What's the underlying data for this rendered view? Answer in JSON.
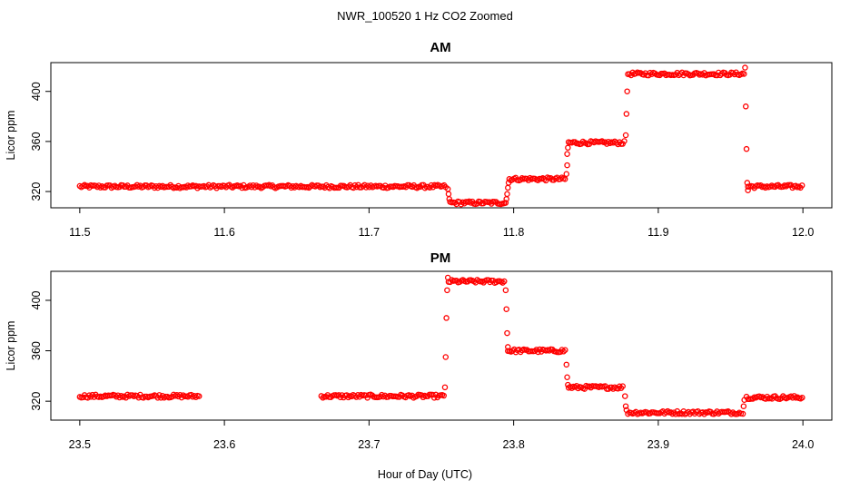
{
  "figure": {
    "title": "NWR_100520  1 Hz CO2 Zoomed",
    "xlabel": "Hour of Day (UTC)"
  },
  "chart_data": [
    {
      "type": "scatter",
      "title": "AM",
      "ylabel": "Licor ppm",
      "xlim": [
        11.48,
        12.02
      ],
      "ylim": [
        307,
        423
      ],
      "xticks": [
        11.5,
        11.6,
        11.7,
        11.8,
        11.9,
        12.0
      ],
      "xtick_labels": [
        "11.5",
        "11.6",
        "11.7",
        "11.8",
        "11.9",
        "12.0"
      ],
      "yticks": [
        320,
        360,
        400
      ],
      "ytick_labels": [
        "320",
        "360",
        "400"
      ],
      "marker_color": "#ff0000",
      "plateaus": [
        {
          "start": 11.5,
          "end": 11.754,
          "value": 324
        },
        {
          "start": 11.756,
          "end": 11.795,
          "value": 311
        },
        {
          "start": 11.797,
          "end": 11.836,
          "value": 330
        },
        {
          "start": 11.838,
          "end": 11.877,
          "value": 359
        },
        {
          "start": 11.879,
          "end": 11.96,
          "value": 414
        },
        {
          "start": 11.962,
          "end": 12.0,
          "value": 324
        }
      ],
      "transitions": [
        {
          "x": 11.7545,
          "y": 322
        },
        {
          "x": 11.755,
          "y": 318
        },
        {
          "x": 11.7555,
          "y": 314
        },
        {
          "x": 11.795,
          "y": 314
        },
        {
          "x": 11.7955,
          "y": 318
        },
        {
          "x": 11.796,
          "y": 323
        },
        {
          "x": 11.7965,
          "y": 327
        },
        {
          "x": 11.8365,
          "y": 334
        },
        {
          "x": 11.837,
          "y": 341
        },
        {
          "x": 11.837,
          "y": 350
        },
        {
          "x": 11.8375,
          "y": 355
        },
        {
          "x": 11.8775,
          "y": 365
        },
        {
          "x": 11.878,
          "y": 382
        },
        {
          "x": 11.8785,
          "y": 400
        },
        {
          "x": 11.96,
          "y": 419
        },
        {
          "x": 11.9605,
          "y": 388
        },
        {
          "x": 11.961,
          "y": 354
        },
        {
          "x": 11.9615,
          "y": 327
        },
        {
          "x": 11.962,
          "y": 321
        }
      ]
    },
    {
      "type": "scatter",
      "title": "PM",
      "ylabel": "Licor ppm",
      "xlim": [
        23.48,
        24.02
      ],
      "ylim": [
        305,
        423
      ],
      "xticks": [
        23.5,
        23.6,
        23.7,
        23.8,
        23.9,
        24.0
      ],
      "xtick_labels": [
        "23.5",
        "23.6",
        "23.7",
        "23.8",
        "23.9",
        "24.0"
      ],
      "yticks": [
        320,
        360,
        400
      ],
      "ytick_labels": [
        "320",
        "360",
        "400"
      ],
      "marker_color": "#ff0000",
      "plateaus": [
        {
          "start": 23.5,
          "end": 23.583,
          "value": 324
        },
        {
          "start": 23.667,
          "end": 23.752,
          "value": 324
        },
        {
          "start": 23.755,
          "end": 23.794,
          "value": 415
        },
        {
          "start": 23.796,
          "end": 23.836,
          "value": 360
        },
        {
          "start": 23.838,
          "end": 23.876,
          "value": 331
        },
        {
          "start": 23.879,
          "end": 23.958,
          "value": 311
        },
        {
          "start": 23.961,
          "end": 24.0,
          "value": 323
        }
      ],
      "transitions": [
        {
          "x": 23.7525,
          "y": 331
        },
        {
          "x": 23.753,
          "y": 355
        },
        {
          "x": 23.7535,
          "y": 386
        },
        {
          "x": 23.754,
          "y": 408
        },
        {
          "x": 23.7545,
          "y": 418
        },
        {
          "x": 23.7945,
          "y": 408
        },
        {
          "x": 23.795,
          "y": 393
        },
        {
          "x": 23.7955,
          "y": 374
        },
        {
          "x": 23.796,
          "y": 363
        },
        {
          "x": 23.8365,
          "y": 349
        },
        {
          "x": 23.837,
          "y": 339
        },
        {
          "x": 23.8375,
          "y": 333
        },
        {
          "x": 23.877,
          "y": 324
        },
        {
          "x": 23.8775,
          "y": 316
        },
        {
          "x": 23.878,
          "y": 313
        },
        {
          "x": 23.9585,
          "y": 310
        },
        {
          "x": 23.959,
          "y": 316
        },
        {
          "x": 23.9595,
          "y": 321
        }
      ]
    }
  ]
}
